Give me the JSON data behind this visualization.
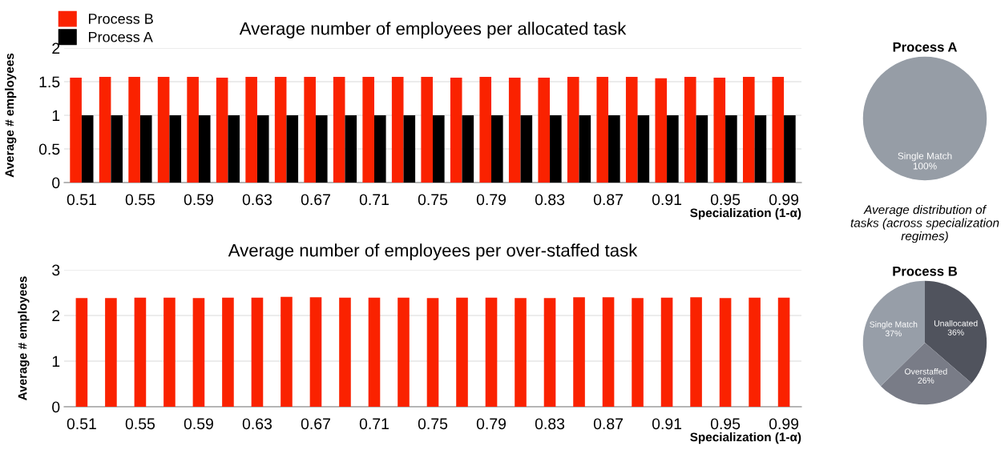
{
  "chart_data": [
    {
      "type": "bar",
      "title": "Average number of employees per allocated task",
      "xlabel": "Specialization (1-α)",
      "ylabel": "Average # employees",
      "categories": [
        "0.51",
        null,
        "0.55",
        null,
        "0.59",
        null,
        "0.63",
        null,
        "0.67",
        null,
        "0.71",
        null,
        "0.75",
        null,
        "0.79",
        null,
        "0.83",
        null,
        "0.87",
        null,
        "0.91",
        null,
        "0.95",
        null,
        "0.99"
      ],
      "series": [
        {
          "name": "Process B",
          "color": "#fa2200",
          "values": [
            1.56,
            1.57,
            1.57,
            1.57,
            1.57,
            1.56,
            1.57,
            1.57,
            1.57,
            1.57,
            1.57,
            1.57,
            1.57,
            1.56,
            1.57,
            1.56,
            1.56,
            1.57,
            1.57,
            1.57,
            1.55,
            1.57,
            1.56,
            1.57,
            1.57
          ]
        },
        {
          "name": "Process A",
          "color": "#000000",
          "values": [
            1,
            1,
            1,
            1,
            1,
            1,
            1,
            1,
            1,
            1,
            1,
            1,
            1,
            1,
            1,
            1,
            1,
            1,
            1,
            1,
            1,
            1,
            1,
            1,
            1
          ]
        }
      ],
      "ylim": [
        0,
        2
      ],
      "yticks": [
        0,
        0.5,
        1,
        1.5,
        2
      ],
      "grid": "y",
      "legend": "top left"
    },
    {
      "type": "pie",
      "title": "Process A",
      "categories": [
        "Single Match"
      ],
      "values": [
        100
      ],
      "value_labels": [
        "100%"
      ],
      "colors": [
        "#969da6"
      ]
    },
    {
      "type": "bar",
      "title": "Average number of employees per over-staffed task",
      "xlabel": "Specialization (1-α)",
      "ylabel": "Average # employees",
      "categories": [
        "0.51",
        null,
        "0.55",
        null,
        "0.59",
        null,
        "0.63",
        null,
        "0.67",
        null,
        "0.71",
        null,
        "0.75",
        null,
        "0.79",
        null,
        "0.83",
        null,
        "0.87",
        null,
        "0.91",
        null,
        "0.95",
        null,
        "0.99"
      ],
      "series": [
        {
          "color": "#fa2200",
          "values": [
            2.38,
            2.38,
            2.39,
            2.39,
            2.38,
            2.39,
            2.39,
            2.41,
            2.4,
            2.39,
            2.39,
            2.39,
            2.38,
            2.39,
            2.39,
            2.38,
            2.38,
            2.4,
            2.4,
            2.38,
            2.39,
            2.4,
            2.38,
            2.39,
            2.39
          ]
        }
      ],
      "ylim": [
        0,
        3
      ],
      "yticks": [
        0,
        1,
        2,
        3
      ],
      "grid": "y"
    },
    {
      "type": "pie",
      "title": "Process B",
      "annotations": [
        "Average distribution of tasks (across specialization regimes)"
      ],
      "categories": [
        "Unallocated",
        "Overstaffed",
        "Single Match"
      ],
      "values": [
        36,
        26,
        37
      ],
      "value_labels": [
        "36%",
        "26%",
        "37%"
      ],
      "colors": [
        "#50535d",
        "#797c87",
        "#979ea8"
      ]
    }
  ]
}
